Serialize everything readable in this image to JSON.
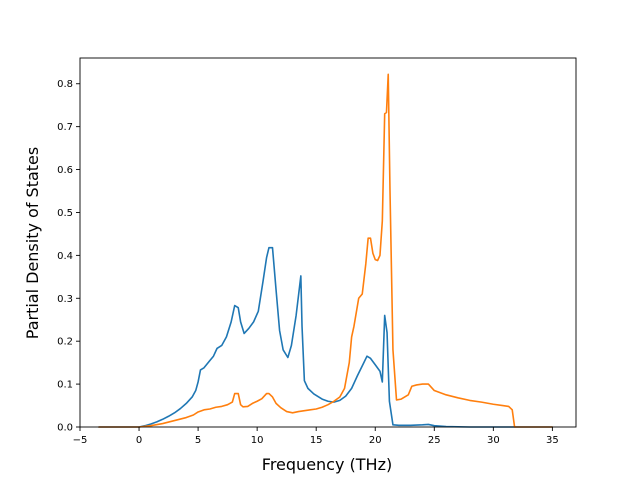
{
  "chart_data": {
    "type": "line",
    "title": "",
    "xlabel": "Frequency (THz)",
    "ylabel": "Partial Density of States",
    "xlim": [
      -5,
      37
    ],
    "ylim": [
      0,
      0.86
    ],
    "xticks": [
      -5,
      0,
      5,
      10,
      15,
      20,
      25,
      30,
      35
    ],
    "yticks": [
      0.0,
      0.1,
      0.2,
      0.3,
      0.4,
      0.5,
      0.6,
      0.7,
      0.8
    ],
    "grid": false,
    "legend": "none",
    "series": [
      {
        "color": "#1f77b4",
        "x": [
          -3.4,
          0,
          0.5,
          1,
          1.5,
          2,
          2.5,
          3,
          3.5,
          4,
          4.5,
          4.8,
          5.0,
          5.2,
          5.5,
          6.0,
          6.3,
          6.6,
          7.0,
          7.4,
          7.8,
          8.1,
          8.4,
          8.6,
          8.9,
          9.3,
          9.7,
          10.1,
          10.5,
          10.8,
          11.0,
          11.3,
          11.6,
          11.9,
          12.2,
          12.6,
          12.9,
          13.3,
          13.7,
          13.8,
          14.0,
          14.3,
          14.8,
          15.5,
          16.0,
          16.5,
          17.0,
          17.5,
          18.0,
          18.5,
          19.0,
          19.3,
          19.6,
          20.0,
          20.4,
          20.6,
          20.8,
          21.0,
          21.2,
          21.5,
          22.0,
          23.0,
          24.0,
          24.5,
          25.0,
          26.0,
          28.0,
          30.0,
          32.0,
          35.0
        ],
        "y": [
          0.0,
          0.0,
          0.003,
          0.007,
          0.012,
          0.018,
          0.025,
          0.033,
          0.043,
          0.055,
          0.07,
          0.085,
          0.105,
          0.133,
          0.138,
          0.155,
          0.165,
          0.183,
          0.19,
          0.21,
          0.245,
          0.283,
          0.278,
          0.245,
          0.218,
          0.23,
          0.245,
          0.27,
          0.34,
          0.395,
          0.418,
          0.418,
          0.32,
          0.225,
          0.18,
          0.162,
          0.19,
          0.26,
          0.352,
          0.235,
          0.108,
          0.09,
          0.077,
          0.065,
          0.06,
          0.058,
          0.062,
          0.072,
          0.09,
          0.12,
          0.148,
          0.165,
          0.16,
          0.145,
          0.13,
          0.105,
          0.26,
          0.22,
          0.06,
          0.005,
          0.004,
          0.004,
          0.005,
          0.006,
          0.003,
          0.001,
          0.0,
          0.0,
          0.0,
          0.0
        ]
      },
      {
        "color": "#ff7f0e",
        "x": [
          -3.4,
          0,
          1,
          2,
          3,
          4,
          4.6,
          5.0,
          5.5,
          6.0,
          6.5,
          7.0,
          7.5,
          7.9,
          8.1,
          8.4,
          8.6,
          8.8,
          9.2,
          9.6,
          10.0,
          10.4,
          10.8,
          11.0,
          11.3,
          11.6,
          12.0,
          12.5,
          13.0,
          13.5,
          14.0,
          14.5,
          15.0,
          15.5,
          16.0,
          16.5,
          17.0,
          17.4,
          17.8,
          18.0,
          18.2,
          18.6,
          18.9,
          19.2,
          19.4,
          19.6,
          19.8,
          20.0,
          20.2,
          20.4,
          20.6,
          20.8,
          20.95,
          21.1,
          21.25,
          21.5,
          21.8,
          22.2,
          22.8,
          23.1,
          23.5,
          24.0,
          24.5,
          25.0,
          26.0,
          27.0,
          28.0,
          29.0,
          30.0,
          30.8,
          31.3,
          31.6,
          31.8,
          35.0
        ],
        "y": [
          0.0,
          0.0,
          0.003,
          0.008,
          0.015,
          0.022,
          0.028,
          0.035,
          0.04,
          0.042,
          0.046,
          0.048,
          0.052,
          0.058,
          0.078,
          0.078,
          0.052,
          0.047,
          0.048,
          0.055,
          0.06,
          0.066,
          0.078,
          0.078,
          0.07,
          0.055,
          0.045,
          0.036,
          0.033,
          0.036,
          0.038,
          0.04,
          0.042,
          0.046,
          0.052,
          0.06,
          0.07,
          0.09,
          0.15,
          0.21,
          0.235,
          0.3,
          0.31,
          0.38,
          0.44,
          0.44,
          0.405,
          0.39,
          0.388,
          0.4,
          0.48,
          0.73,
          0.733,
          0.822,
          0.55,
          0.18,
          0.063,
          0.065,
          0.075,
          0.095,
          0.098,
          0.1,
          0.1,
          0.085,
          0.075,
          0.068,
          0.062,
          0.058,
          0.053,
          0.05,
          0.048,
          0.04,
          0.0,
          0.0
        ]
      }
    ]
  }
}
